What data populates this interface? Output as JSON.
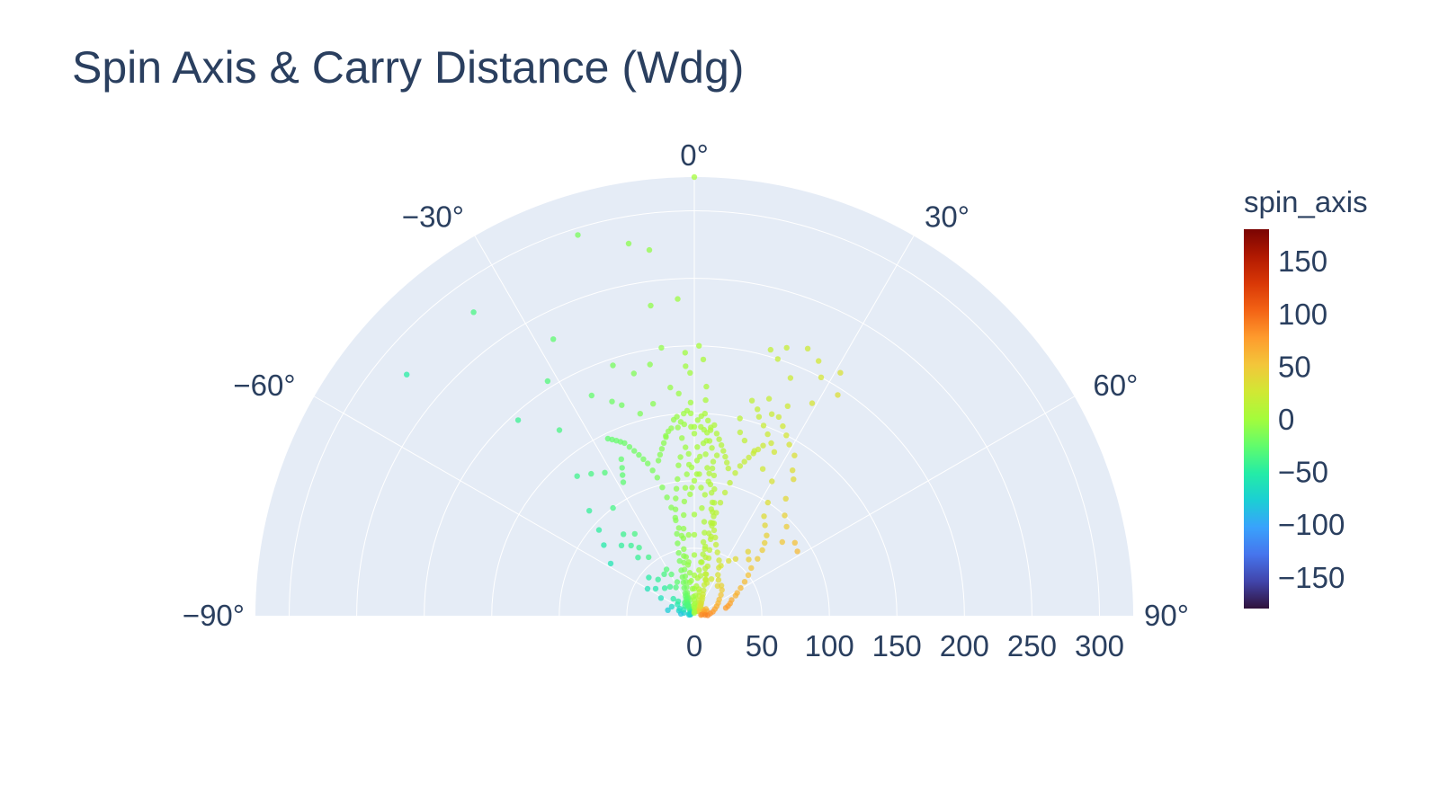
{
  "chart_data": {
    "type": "scatter",
    "subtype": "polar",
    "title": "Spin Axis & Carry Distance (Wdg)",
    "angular_axis": {
      "unit": "degrees",
      "range": [
        -90,
        90
      ],
      "direction": "clockwise",
      "zero_at": "top",
      "tick_values": [
        -90,
        -60,
        -30,
        0,
        30,
        60,
        90
      ],
      "tick_labels": [
        "−90°",
        "−60°",
        "−30°",
        "0°",
        "30°",
        "60°",
        "90°"
      ]
    },
    "radial_axis": {
      "range": [
        0,
        325
      ],
      "tick_values": [
        0,
        50,
        100,
        150,
        200,
        250,
        300
      ],
      "tick_labels": [
        "0",
        "50",
        "100",
        "150",
        "200",
        "250",
        "300"
      ]
    },
    "grid": true,
    "colorbar": {
      "title": "spin_axis",
      "range": [
        -180,
        180
      ],
      "tick_values": [
        150,
        100,
        50,
        0,
        -50,
        -100,
        -150
      ],
      "tick_labels": [
        "150",
        "100",
        "50",
        "0",
        "−50",
        "−100",
        "−150"
      ],
      "colorscale": [
        "#30123b",
        "#4145ab",
        "#4675ed",
        "#39a2fc",
        "#1bcfd4",
        "#24eca6",
        "#61fc6c",
        "#a4fc3b",
        "#d1e834",
        "#f3c63a",
        "#fe9b2d",
        "#f36315",
        "#d93806",
        "#b11901",
        "#7a0402"
      ]
    },
    "colors": {
      "plot_bg": "#e5ecf6",
      "grid": "#ffffff",
      "text": "#2a3f5f"
    },
    "points": [
      [
        0,
        325
      ],
      [
        -17,
        295
      ],
      [
        -10,
        280
      ],
      [
        -7,
        273
      ],
      [
        -36,
        278
      ],
      [
        -3,
        235
      ],
      [
        -8,
        232
      ],
      [
        -27,
        230
      ],
      [
        -50,
        278
      ],
      [
        -32,
        205
      ],
      [
        -18,
        195
      ],
      [
        -7,
        200
      ],
      [
        -2,
        195
      ],
      [
        -10,
        189
      ],
      [
        -14,
        185
      ],
      [
        -25,
        180
      ],
      [
        -21,
        170
      ],
      [
        -11,
        160
      ],
      [
        -6,
        170
      ],
      [
        -19,
        165
      ],
      [
        -40,
        135
      ],
      [
        -36,
        170
      ],
      [
        -15,
        155
      ],
      [
        -42,
        195
      ],
      [
        -1,
        158
      ],
      [
        3,
        150
      ],
      [
        -3,
        150
      ],
      [
        -2,
        185
      ],
      [
        -1,
        180
      ],
      [
        -4,
        165
      ],
      [
        -5,
        140
      ],
      [
        -9,
        135
      ],
      [
        -25,
        128
      ],
      [
        -26,
        122
      ],
      [
        -27,
        117
      ],
      [
        -28,
        112
      ],
      [
        -32,
        125
      ],
      [
        -36,
        130
      ],
      [
        -37,
        100
      ],
      [
        -45,
        110
      ],
      [
        -48,
        95
      ],
      [
        -52,
        85
      ],
      [
        -58,
        73
      ],
      [
        -46,
        75
      ],
      [
        -42,
        70
      ],
      [
        -41,
        80
      ],
      [
        -36,
        75
      ],
      [
        -39,
        65
      ],
      [
        -44,
        60
      ],
      [
        -38,
        55
      ],
      [
        -31,
        40
      ],
      [
        -29,
        35
      ],
      [
        -27,
        28
      ],
      [
        -33,
        25
      ],
      [
        -36,
        38
      ],
      [
        -40,
        28
      ],
      [
        -45,
        38
      ],
      [
        -47,
        30
      ],
      [
        -50,
        44
      ],
      [
        -55,
        35
      ],
      [
        -60,
        40
      ],
      [
        -62,
        28
      ],
      [
        -68,
        18
      ],
      [
        -72,
        12
      ],
      [
        -75,
        8
      ],
      [
        -78,
        20
      ],
      [
        -82,
        10
      ],
      [
        -80,
        4
      ],
      [
        -56,
        15
      ],
      [
        -60,
        9
      ],
      [
        -64,
        12
      ],
      [
        -48,
        16
      ],
      [
        -51,
        20
      ],
      [
        -44,
        10
      ],
      [
        -36,
        12
      ],
      [
        -28,
        8
      ],
      [
        -20,
        5
      ],
      [
        -15,
        12
      ],
      [
        -18,
        14
      ],
      [
        -10,
        4
      ],
      [
        -8,
        25
      ],
      [
        -6,
        40
      ],
      [
        -4,
        60
      ],
      [
        -2,
        90
      ],
      [
        -1,
        110
      ],
      [
        1,
        125
      ],
      [
        2,
        140
      ],
      [
        3,
        160
      ],
      [
        5,
        140
      ],
      [
        4,
        130
      ],
      [
        8,
        120
      ],
      [
        7,
        110
      ],
      [
        6,
        100
      ],
      [
        5,
        90
      ],
      [
        9,
        80
      ],
      [
        10,
        70
      ],
      [
        12,
        60
      ],
      [
        7,
        55
      ],
      [
        8,
        40
      ],
      [
        9,
        30
      ],
      [
        10,
        20
      ],
      [
        12,
        18
      ],
      [
        14,
        15
      ],
      [
        16,
        12
      ],
      [
        18,
        10
      ],
      [
        20,
        8
      ],
      [
        22,
        6
      ],
      [
        25,
        5
      ],
      [
        30,
        4
      ],
      [
        35,
        4
      ],
      [
        40,
        5
      ],
      [
        45,
        6
      ],
      [
        50,
        7
      ],
      [
        55,
        8
      ],
      [
        60,
        10
      ],
      [
        65,
        8
      ],
      [
        70,
        10
      ],
      [
        75,
        8
      ],
      [
        80,
        6
      ],
      [
        84,
        5
      ],
      [
        86,
        8
      ],
      [
        88,
        10
      ],
      [
        82,
        12
      ],
      [
        78,
        14
      ],
      [
        72,
        16
      ],
      [
        67,
        18
      ],
      [
        62,
        20
      ],
      [
        57,
        22
      ],
      [
        52,
        25
      ],
      [
        47,
        28
      ],
      [
        42,
        30
      ],
      [
        38,
        28
      ],
      [
        34,
        32
      ],
      [
        30,
        35
      ],
      [
        27,
        40
      ],
      [
        24,
        45
      ],
      [
        20,
        50
      ],
      [
        17,
        55
      ],
      [
        15,
        60
      ],
      [
        13,
        65
      ],
      [
        12,
        70
      ],
      [
        11,
        75
      ],
      [
        10,
        85
      ],
      [
        9,
        95
      ],
      [
        8,
        105
      ],
      [
        7,
        115
      ],
      [
        6,
        125
      ],
      [
        5,
        130
      ],
      [
        4,
        145
      ],
      [
        3,
        170
      ],
      [
        2,
        190
      ],
      [
        1,
        200
      ],
      [
        16,
        205
      ],
      [
        18,
        200
      ],
      [
        19,
        210
      ],
      [
        22,
        190
      ],
      [
        23,
        215
      ],
      [
        26,
        210
      ],
      [
        28,
        200
      ],
      [
        31,
        210
      ],
      [
        33,
        195
      ],
      [
        29,
        180
      ],
      [
        24,
        170
      ],
      [
        21,
        160
      ],
      [
        19,
        170
      ],
      [
        17,
        160
      ],
      [
        15,
        165
      ],
      [
        13,
        150
      ],
      [
        14,
        140
      ],
      [
        16,
        135
      ],
      [
        20,
        130
      ],
      [
        25,
        120
      ],
      [
        30,
        115
      ],
      [
        33,
        100
      ],
      [
        35,
        90
      ],
      [
        38,
        85
      ],
      [
        42,
        80
      ],
      [
        44,
        75
      ],
      [
        46,
        70
      ],
      [
        48,
        63
      ],
      [
        50,
        55
      ],
      [
        53,
        50
      ],
      [
        56,
        45
      ],
      [
        59,
        40
      ],
      [
        62,
        36
      ],
      [
        64,
        34
      ],
      [
        67,
        30
      ],
      [
        71,
        28
      ],
      [
        74,
        26
      ],
      [
        76,
        24
      ],
      [
        58,
        90
      ],
      [
        54,
        92
      ],
      [
        50,
        85
      ],
      [
        46,
        95
      ],
      [
        42,
        100
      ],
      [
        38,
        110
      ],
      [
        36,
        125
      ],
      [
        34,
        130
      ],
      [
        32,
        140
      ],
      [
        29,
        145
      ],
      [
        27,
        150
      ],
      [
        25,
        155
      ],
      [
        23,
        160
      ],
      [
        26,
        135
      ],
      [
        24,
        140
      ],
      [
        22,
        145
      ],
      [
        20,
        150
      ],
      [
        18,
        155
      ],
      [
        40,
        62
      ],
      [
        44,
        58
      ],
      [
        36,
        52
      ],
      [
        32,
        48
      ],
      [
        28,
        42
      ],
      [
        25,
        30
      ],
      [
        21,
        26
      ],
      [
        18,
        28
      ],
      [
        15,
        32
      ],
      [
        13,
        36
      ],
      [
        11,
        44
      ],
      [
        9,
        50
      ],
      [
        7,
        62
      ],
      [
        6,
        70
      ],
      [
        4,
        80
      ],
      [
        3,
        95
      ],
      [
        2,
        105
      ],
      [
        1,
        115
      ],
      [
        0,
        135
      ],
      [
        -1,
        140
      ],
      [
        -2,
        120
      ],
      [
        -3,
        105
      ],
      [
        -4,
        95
      ],
      [
        -5,
        85
      ],
      [
        -6,
        75
      ],
      [
        -7,
        65
      ],
      [
        -8,
        58
      ],
      [
        -9,
        50
      ],
      [
        -10,
        45
      ],
      [
        -11,
        40
      ],
      [
        -12,
        35
      ],
      [
        -13,
        30
      ],
      [
        -14,
        26
      ],
      [
        -15,
        22
      ],
      [
        -17,
        18
      ],
      [
        -19,
        16
      ],
      [
        -22,
        14
      ],
      [
        -25,
        12
      ],
      [
        -27,
        10
      ],
      [
        -30,
        9
      ],
      [
        -33,
        8
      ],
      [
        -35,
        6
      ],
      [
        -38,
        5
      ],
      [
        -42,
        4
      ],
      [
        -46,
        4
      ],
      [
        -50,
        3
      ],
      [
        -55,
        3
      ],
      [
        -61,
        3
      ],
      [
        -67,
        4
      ],
      [
        -74,
        3
      ],
      [
        -1,
        95
      ],
      [
        0,
        100
      ],
      [
        1,
        105
      ],
      [
        -2,
        112
      ],
      [
        2,
        118
      ],
      [
        -3,
        125
      ],
      [
        3,
        128
      ],
      [
        -4,
        132
      ],
      [
        4,
        120
      ],
      [
        -5,
        118
      ],
      [
        5,
        110
      ],
      [
        -6,
        112
      ],
      [
        6,
        106
      ],
      [
        -7,
        102
      ],
      [
        7,
        98
      ],
      [
        -8,
        95
      ],
      [
        8,
        92
      ],
      [
        -9,
        88
      ],
      [
        9,
        85
      ],
      [
        -10,
        80
      ],
      [
        10,
        78
      ],
      [
        -11,
        72
      ],
      [
        11,
        68
      ],
      [
        -12,
        62
      ],
      [
        12,
        58
      ],
      [
        -13,
        55
      ],
      [
        13,
        50
      ],
      [
        -14,
        48
      ],
      [
        14,
        44
      ],
      [
        -15,
        42
      ],
      [
        15,
        38
      ],
      [
        -16,
        35
      ],
      [
        16,
        32
      ],
      [
        -17,
        30
      ],
      [
        17,
        28
      ],
      [
        -18,
        26
      ],
      [
        18,
        24
      ],
      [
        -20,
        22
      ],
      [
        20,
        20
      ],
      [
        -22,
        18
      ],
      [
        22,
        17
      ],
      [
        -24,
        16
      ],
      [
        24,
        15
      ],
      [
        -26,
        14
      ],
      [
        26,
        13
      ],
      [
        -28,
        12
      ],
      [
        28,
        11
      ],
      [
        -30,
        11
      ],
      [
        30,
        10
      ],
      [
        -32,
        10
      ],
      [
        32,
        9
      ],
      [
        -34,
        9
      ],
      [
        34,
        8
      ],
      [
        0,
        75
      ],
      [
        0,
        60
      ],
      [
        0,
        45
      ],
      [
        0,
        30
      ],
      [
        0,
        20
      ],
      [
        0,
        12
      ],
      [
        0,
        6
      ],
      [
        1,
        3
      ],
      [
        -1,
        2
      ],
      [
        2,
        9
      ],
      [
        -2,
        8
      ],
      [
        3,
        15
      ],
      [
        -3,
        14
      ],
      [
        4,
        22
      ],
      [
        -4,
        20
      ],
      [
        5,
        28
      ],
      [
        -5,
        26
      ],
      [
        6,
        34
      ],
      [
        -6,
        32
      ],
      [
        7,
        40
      ],
      [
        -7,
        38
      ],
      [
        8,
        46
      ],
      [
        -8,
        44
      ],
      [
        9,
        52
      ],
      [
        -9,
        60
      ],
      [
        10,
        62
      ],
      [
        -10,
        66
      ],
      [
        11,
        70
      ],
      [
        -11,
        74
      ],
      [
        12,
        78
      ],
      [
        -12,
        82
      ],
      [
        13,
        86
      ],
      [
        -13,
        90
      ],
      [
        14,
        94
      ],
      [
        -14,
        98
      ],
      [
        15,
        102
      ],
      [
        -15,
        106
      ],
      [
        16,
        110
      ],
      [
        -16,
        112
      ],
      [
        17,
        116
      ],
      [
        -17,
        118
      ],
      [
        18,
        120
      ],
      [
        -18,
        122
      ],
      [
        19,
        124
      ],
      [
        -19,
        126
      ],
      [
        20,
        128
      ],
      [
        -20,
        130
      ],
      [
        21,
        132
      ],
      [
        -21,
        134
      ],
      [
        22,
        136
      ],
      [
        -22,
        138
      ],
      [
        -23,
        140
      ],
      [
        -24,
        142
      ],
      [
        -25,
        144
      ],
      [
        -26,
        146
      ],
      [
        0,
        140
      ],
      [
        1,
        145
      ],
      [
        -1,
        150
      ],
      [
        2,
        148
      ],
      [
        -2,
        152
      ],
      [
        3,
        138
      ],
      [
        -3,
        142
      ],
      [
        4,
        136
      ],
      [
        -4,
        144
      ],
      [
        5,
        138
      ],
      [
        -5,
        148
      ],
      [
        6,
        142
      ],
      [
        -6,
        146
      ],
      [
        7,
        136
      ],
      [
        -7,
        140
      ],
      [
        8,
        132
      ],
      [
        -8,
        138
      ],
      [
        9,
        128
      ],
      [
        -9,
        134
      ],
      [
        10,
        124
      ],
      [
        -10,
        130
      ],
      [
        11,
        120
      ],
      [
        -11,
        126
      ],
      [
        12,
        116
      ],
      [
        -12,
        122
      ],
      [
        13,
        112
      ],
      [
        -13,
        118
      ]
    ]
  }
}
